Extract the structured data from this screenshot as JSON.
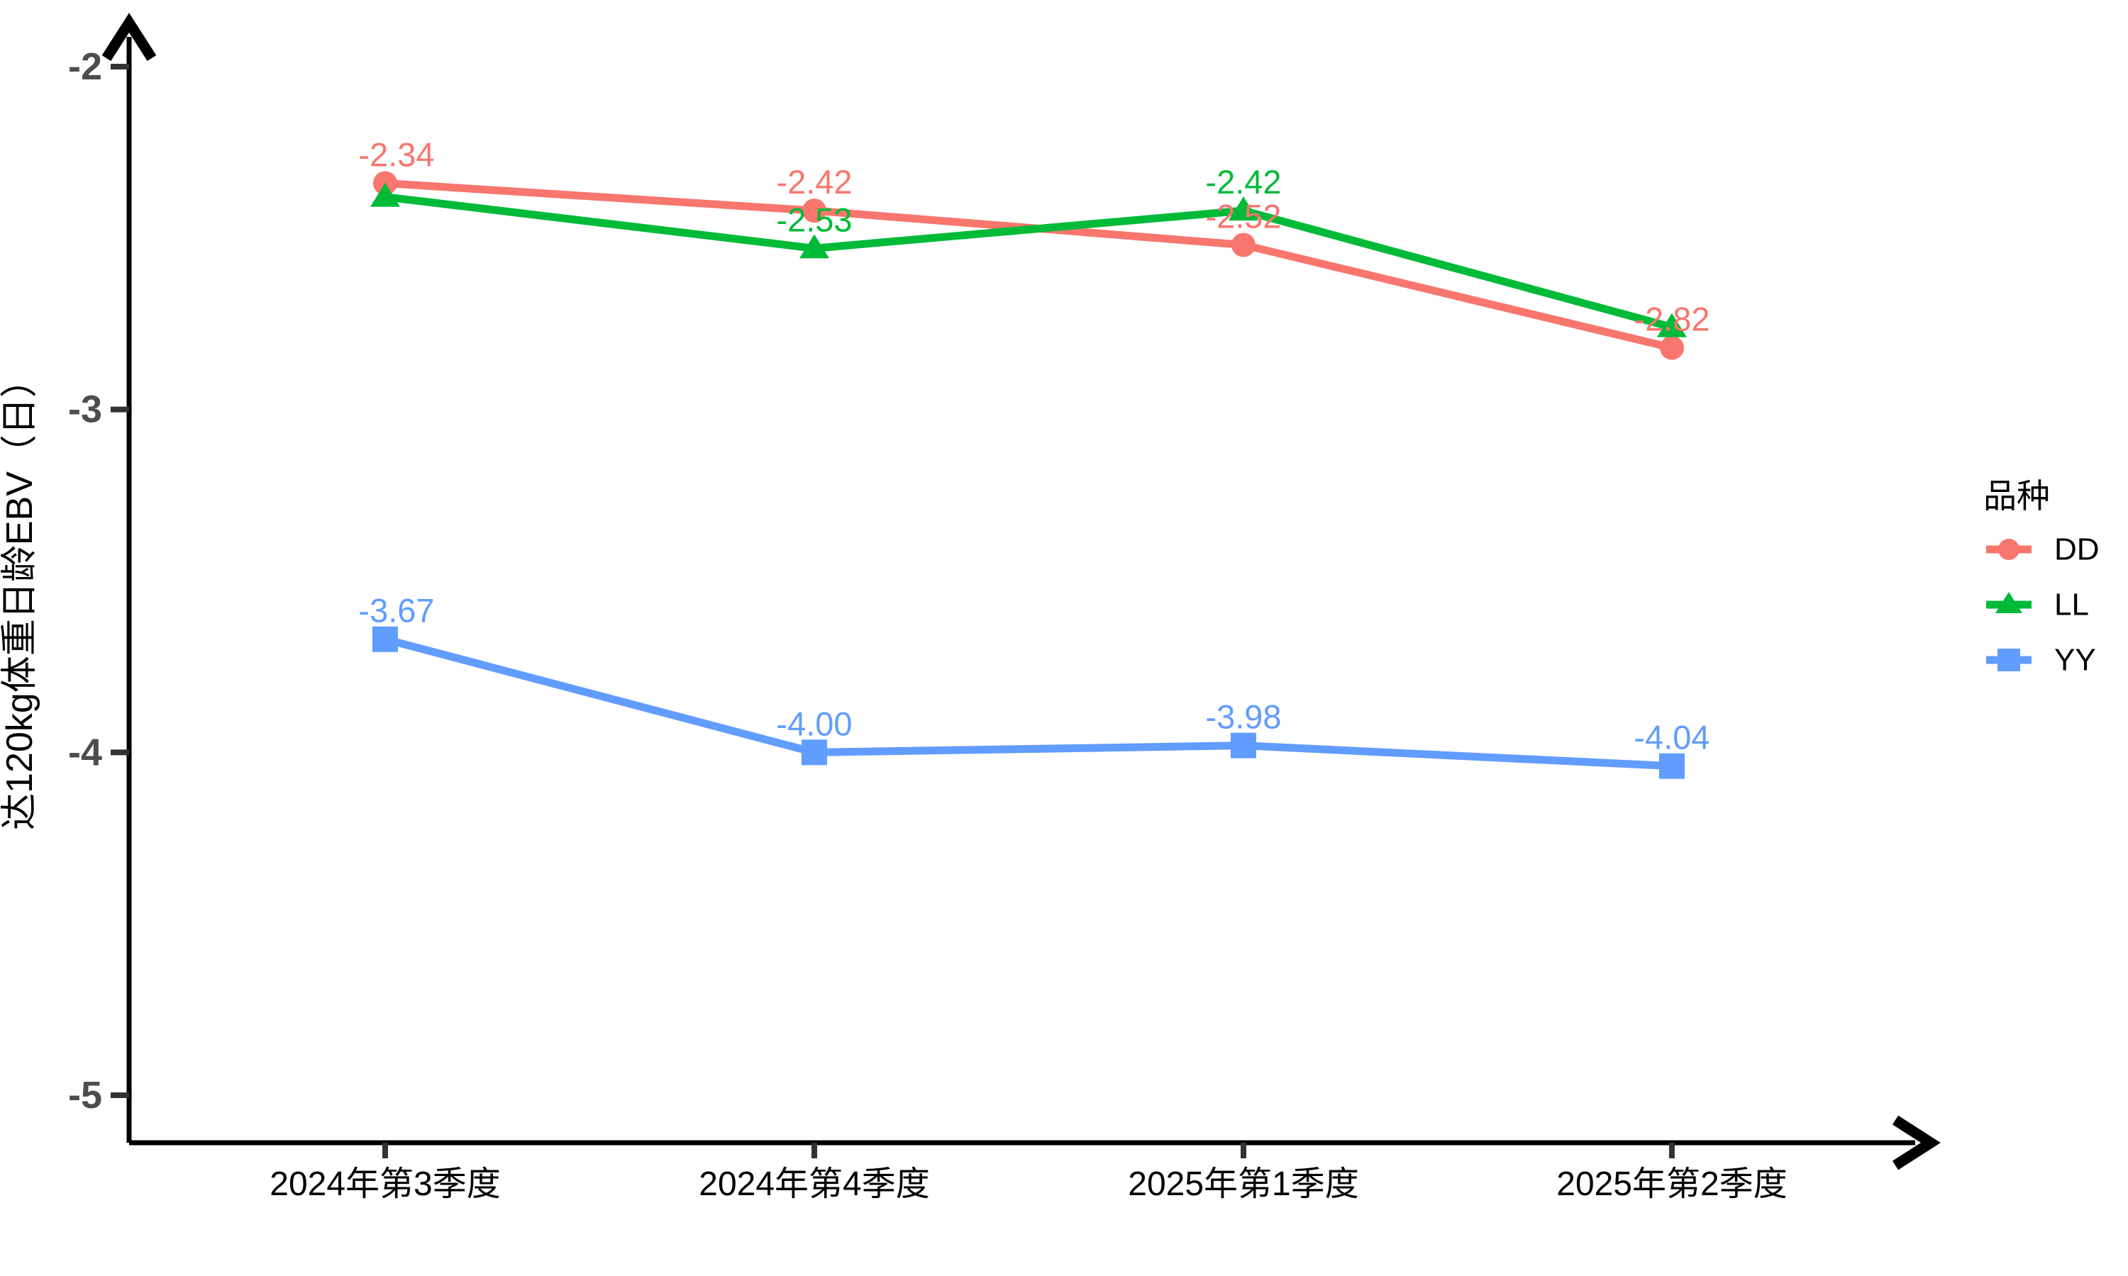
{
  "chart_data": {
    "type": "line",
    "title": "",
    "xlabel": "",
    "ylabel": "达120kg体重日龄EBV（日）",
    "categories": [
      "2024年第3季度",
      "2024年第4季度",
      "2025年第1季度",
      "2025年第2季度"
    ],
    "y_ticks": [
      -2,
      -3,
      -4,
      -5
    ],
    "y_tick_labels": [
      "-2",
      "-3",
      "-4",
      "-5"
    ],
    "ylim": [
      -5.15,
      -1.85
    ],
    "grid": false,
    "legend": {
      "title": "品种",
      "position": "right"
    },
    "series": [
      {
        "name": "DD",
        "color": "#F8766D",
        "marker": "circle",
        "values": [
          -2.34,
          -2.42,
          -2.52,
          -2.82
        ],
        "labels": [
          "-2.34",
          "-2.42",
          "-2.52",
          "-2.82"
        ],
        "labels_visible": [
          true,
          true,
          true,
          true
        ]
      },
      {
        "name": "LL",
        "color": "#00BA38",
        "marker": "triangle",
        "values": [
          -2.38,
          -2.53,
          -2.42,
          -2.76
        ],
        "labels": [
          "-2.38",
          "-2.53",
          "-2.42",
          "-2.76"
        ],
        "labels_visible": [
          false,
          true,
          true,
          false
        ]
      },
      {
        "name": "YY",
        "color": "#619CFF",
        "marker": "square",
        "values": [
          -3.67,
          -4.0,
          -3.98,
          -4.04
        ],
        "labels": [
          "-3.67",
          "-4.00",
          "-3.98",
          "-4.04"
        ],
        "labels_visible": [
          true,
          true,
          true,
          true
        ]
      }
    ]
  },
  "style_colors": {
    "axis_line": "#000000",
    "tick_mark": "#333333",
    "y_tick_text": "#4D4D4D",
    "x_tick_text": "#000000",
    "legend_text": "#000000"
  }
}
